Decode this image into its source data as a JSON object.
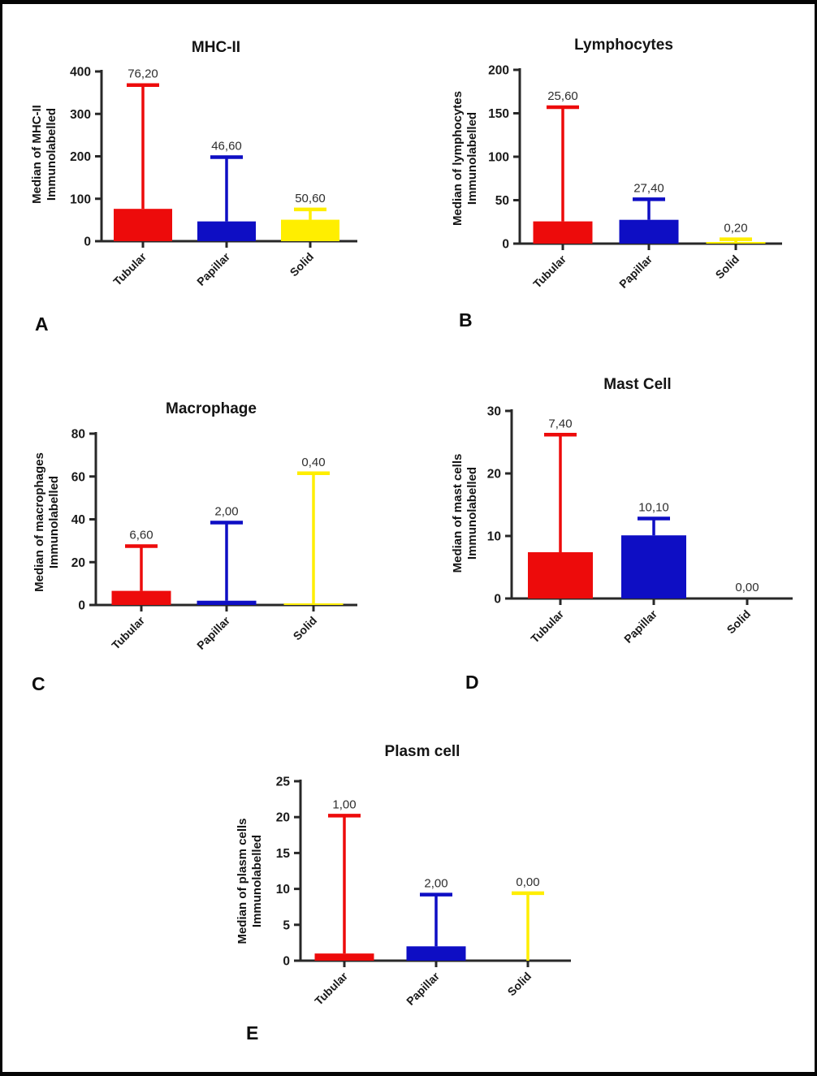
{
  "style": {
    "background": "#FFFFFF",
    "frame_color": "#050505",
    "axis_color": "#282828",
    "value_label_color": "#2E2E2E",
    "bar_red": "#ED0B0B",
    "bar_blue": "#0E0EC4",
    "bar_yellow": "#FFEE00"
  },
  "categories": [
    "Tubular",
    "Papillar",
    "Solid"
  ],
  "chart_data": [
    {
      "type": "bar",
      "panel": "A",
      "title": "MHC-II",
      "ylabel_lines": [
        "Median of MHC-II",
        "Immunolabelled"
      ],
      "categories": [
        "Tubular",
        "Papillar",
        "Solid"
      ],
      "values": [
        76.2,
        46.6,
        50.6
      ],
      "value_labels": [
        "76,20",
        "46,60",
        "50,60"
      ],
      "errors_upper": [
        368,
        198,
        75
      ],
      "ylim": [
        0,
        400
      ],
      "yticks": [
        0,
        100,
        200,
        300,
        400
      ],
      "grid": false,
      "legend": "none",
      "bar_colors": [
        "#ED0B0B",
        "#0E0EC4",
        "#FFEE00"
      ]
    },
    {
      "type": "bar",
      "panel": "B",
      "title": "Lymphocytes",
      "ylabel_lines": [
        "Median of lymphocytes",
        "Immunolabelled"
      ],
      "categories": [
        "Tubular",
        "Papillar",
        "Solid"
      ],
      "values": [
        25.6,
        27.4,
        0.2
      ],
      "value_labels": [
        "25,60",
        "27,40",
        "0,20"
      ],
      "errors_upper": [
        157,
        51,
        5
      ],
      "ylim": [
        0,
        200
      ],
      "yticks": [
        0,
        50,
        100,
        150,
        200
      ],
      "grid": false,
      "legend": "none",
      "bar_colors": [
        "#ED0B0B",
        "#0E0EC4",
        "#FFEE00"
      ]
    },
    {
      "type": "bar",
      "panel": "C",
      "title": "Macrophage",
      "ylabel_lines": [
        "Median of macrophages",
        "Immunolabelled"
      ],
      "categories": [
        "Tubular",
        "Papillar",
        "Solid"
      ],
      "values": [
        6.6,
        2.0,
        0.4
      ],
      "value_labels": [
        "6,60",
        "2,00",
        "0,40"
      ],
      "errors_upper": [
        27.5,
        38.5,
        61.5
      ],
      "ylim": [
        0,
        80
      ],
      "yticks": [
        0,
        20,
        40,
        60,
        80
      ],
      "grid": false,
      "legend": "none",
      "bar_colors": [
        "#ED0B0B",
        "#0E0EC4",
        "#FFEE00"
      ]
    },
    {
      "type": "bar",
      "panel": "D",
      "title": "Mast Cell",
      "ylabel_lines": [
        "Median of mast cells",
        "Immunolabelled"
      ],
      "categories": [
        "Tubular",
        "Papillar",
        "Solid"
      ],
      "values": [
        7.4,
        10.1,
        0
      ],
      "value_labels": [
        "7,40",
        "10,10",
        "0,00"
      ],
      "errors_upper": [
        26.2,
        12.8,
        null
      ],
      "ylim": [
        0,
        30
      ],
      "yticks": [
        0,
        10,
        20,
        30
      ],
      "grid": false,
      "legend": "none",
      "bar_colors": [
        "#ED0B0B",
        "#0E0EC4",
        "#FFEE00"
      ]
    },
    {
      "type": "bar",
      "panel": "E",
      "title": "Plasm cell",
      "ylabel_lines": [
        "Median of plasm cells",
        "Immunolabelled"
      ],
      "categories": [
        "Tubular",
        "Papillar",
        "Solid"
      ],
      "values": [
        1.0,
        2.0,
        0
      ],
      "value_labels": [
        "1,00",
        "2,00",
        "0,00"
      ],
      "errors_upper": [
        20.2,
        9.2,
        9.4
      ],
      "ylim": [
        0,
        25
      ],
      "yticks": [
        0,
        5,
        10,
        15,
        20,
        25
      ],
      "grid": false,
      "legend": "none",
      "bar_colors": [
        "#ED0B0B",
        "#0E0EC4",
        "#FFEE00"
      ]
    }
  ]
}
